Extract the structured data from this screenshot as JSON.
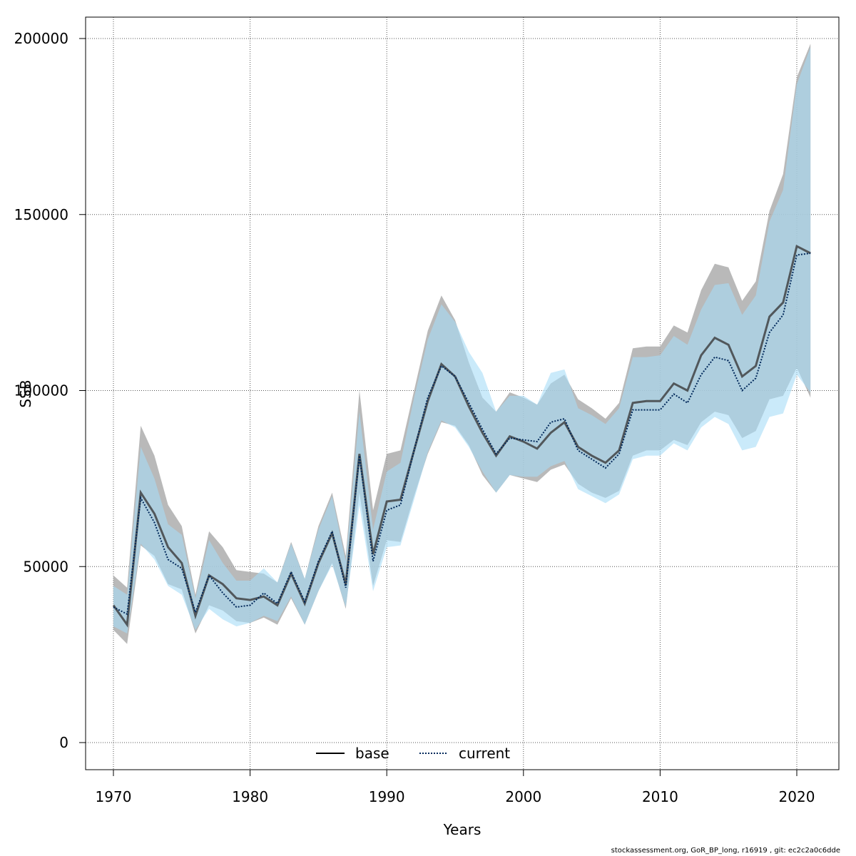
{
  "chart_data": {
    "type": "line",
    "title": "",
    "xlabel": "Years",
    "ylabel": "SSB",
    "xlim": [
      1968,
      2023
    ],
    "ylim": [
      -8000,
      206000
    ],
    "x_ticks": [
      1970,
      1980,
      1990,
      2000,
      2010,
      2020
    ],
    "y_ticks": [
      0,
      50000,
      100000,
      150000,
      200000
    ],
    "grid": true,
    "legend_position": "bottom-center",
    "colors": {
      "base_line": "#000000",
      "base_band": "#a8a8a8",
      "current_line": "#00285a",
      "current_band": "#a6dcf7",
      "grid": "#555555"
    },
    "x": [
      1970,
      1971,
      1972,
      1973,
      1974,
      1975,
      1976,
      1977,
      1978,
      1979,
      1980,
      1981,
      1982,
      1983,
      1984,
      1985,
      1986,
      1987,
      1988,
      1989,
      1990,
      1991,
      1992,
      1993,
      1994,
      1995,
      1996,
      1997,
      1998,
      1999,
      2000,
      2001,
      2002,
      2003,
      2004,
      2005,
      2006,
      2007,
      2008,
      2009,
      2010,
      2011,
      2012,
      2013,
      2014,
      2015,
      2016,
      2017,
      2018,
      2019,
      2020,
      2021
    ],
    "series": [
      {
        "name": "base",
        "line_style": "solid",
        "values": [
          39000,
          33500,
          71000,
          65000,
          55500,
          51000,
          36000,
          47500,
          45000,
          41000,
          40500,
          41500,
          39000,
          48000,
          39500,
          51000,
          59500,
          45000,
          82000,
          53500,
          68500,
          69000,
          83000,
          97000,
          107500,
          104000,
          95500,
          88000,
          81500,
          87000,
          85500,
          83500,
          88000,
          91000,
          84000,
          81500,
          79500,
          83000,
          96500,
          97000,
          97000,
          102000,
          100000,
          110000,
          115000,
          113000,
          104000,
          107000,
          121000,
          125000,
          141000,
          139000
        ],
        "lower": [
          32000,
          28000,
          56000,
          53000,
          45000,
          43500,
          31000,
          39000,
          37500,
          34500,
          34000,
          35500,
          33500,
          41000,
          33500,
          43000,
          51000,
          38000,
          71000,
          44500,
          57500,
          57000,
          70000,
          82000,
          91000,
          90000,
          84500,
          76000,
          71000,
          76000,
          75000,
          74000,
          77500,
          79000,
          73500,
          71000,
          69500,
          71500,
          81500,
          83000,
          83000,
          86000,
          84500,
          91000,
          94000,
          93000,
          86500,
          88500,
          97500,
          98500,
          106500,
          98000
        ],
        "upper": [
          47500,
          44000,
          90000,
          81500,
          67500,
          61500,
          42000,
          60000,
          55500,
          49000,
          48500,
          48000,
          45500,
          57000,
          46500,
          61500,
          71000,
          53000,
          100000,
          66000,
          82000,
          83000,
          100000,
          117000,
          127000,
          120000,
          108000,
          98000,
          94000,
          99500,
          98000,
          96000,
          102000,
          104500,
          97500,
          95000,
          92000,
          96500,
          112000,
          112500,
          112500,
          118500,
          116500,
          128500,
          136000,
          135000,
          125500,
          131000,
          151000,
          161500,
          189000,
          198500
        ]
      },
      {
        "name": "current",
        "line_style": "dotted",
        "values": [
          38500,
          36500,
          69500,
          62500,
          52000,
          49500,
          37000,
          47500,
          42500,
          38500,
          39000,
          42500,
          39500,
          48500,
          40000,
          51500,
          60000,
          44000,
          81500,
          51500,
          66000,
          67500,
          83000,
          98000,
          107000,
          104000,
          96500,
          89000,
          82000,
          86500,
          86000,
          85500,
          91000,
          92000,
          83000,
          80500,
          78000,
          82000,
          94500,
          94500,
          94500,
          99000,
          96500,
          104500,
          109500,
          108500,
          100000,
          103500,
          116500,
          121500,
          138500,
          139000
        ],
        "lower": [
          33000,
          31000,
          56500,
          52000,
          44500,
          42000,
          32000,
          38000,
          35000,
          33000,
          34000,
          36000,
          34500,
          41500,
          33500,
          43000,
          50500,
          38500,
          67500,
          43000,
          55500,
          56000,
          69000,
          82500,
          91500,
          89500,
          84000,
          77000,
          71000,
          76000,
          75500,
          75500,
          78500,
          80000,
          72000,
          70000,
          68000,
          70500,
          80500,
          81500,
          81500,
          85000,
          83000,
          89500,
          92500,
          90500,
          83000,
          84000,
          92500,
          93500,
          104500,
          99500
        ],
        "upper": [
          44500,
          42000,
          84000,
          75000,
          62000,
          59000,
          41000,
          57500,
          51000,
          46000,
          46000,
          49500,
          45500,
          56500,
          46500,
          60500,
          70000,
          51500,
          94000,
          60500,
          77000,
          79500,
          98000,
          114500,
          124500,
          119500,
          111000,
          105000,
          94000,
          98500,
          98500,
          96000,
          105000,
          106000,
          95000,
          93000,
          90500,
          95000,
          109500,
          109500,
          110000,
          115500,
          113000,
          123000,
          130000,
          130500,
          121500,
          127000,
          148000,
          157000,
          187000,
          197500
        ]
      }
    ]
  },
  "footer_note": "stockassessment.org, GoR_BP_long, r16919 , git: ec2c2a0c6dde"
}
